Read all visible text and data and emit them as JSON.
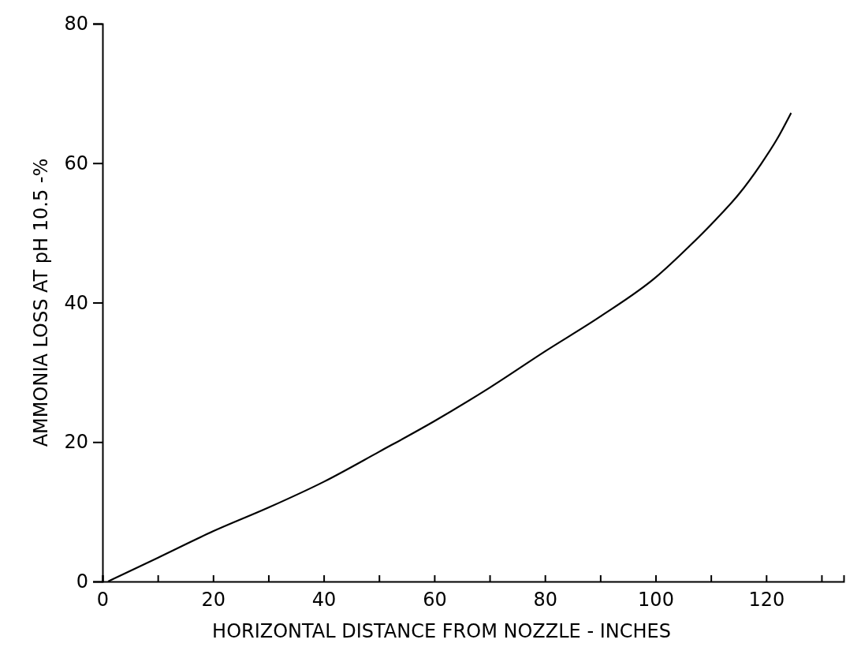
{
  "chart_data": {
    "type": "line",
    "xlabel": "HORIZONTAL DISTANCE FROM NOZZLE - INCHES",
    "ylabel": "AMMONIA LOSS AT pH 10.5 -%",
    "x": [
      1,
      10,
      20,
      30,
      40,
      50,
      60,
      70,
      80,
      90,
      100,
      106,
      111,
      115,
      119,
      122,
      124.5
    ],
    "series": [
      {
        "color": "#000000",
        "values": [
          0,
          3.4,
          7.2,
          10.6,
          14.3,
          18.6,
          23,
          27.8,
          33,
          38,
          43.6,
          48,
          52,
          55.5,
          59.8,
          63.5,
          67.2
        ]
      }
    ],
    "xlim": [
      0,
      134
    ],
    "ylim": [
      0,
      80
    ],
    "xticks": [
      0,
      {
        "value": 10,
        "label": null
      },
      20,
      {
        "value": 30,
        "label": null
      },
      40,
      {
        "value": 50,
        "label": null
      },
      60,
      {
        "value": 70,
        "label": null
      },
      80,
      {
        "value": 90,
        "label": null
      },
      100,
      {
        "value": 110,
        "label": null
      },
      120,
      {
        "value": 130,
        "label": null
      }
    ],
    "yticks": [
      0,
      20,
      40,
      60,
      80
    ],
    "marker": "none",
    "line_style": "solid"
  }
}
